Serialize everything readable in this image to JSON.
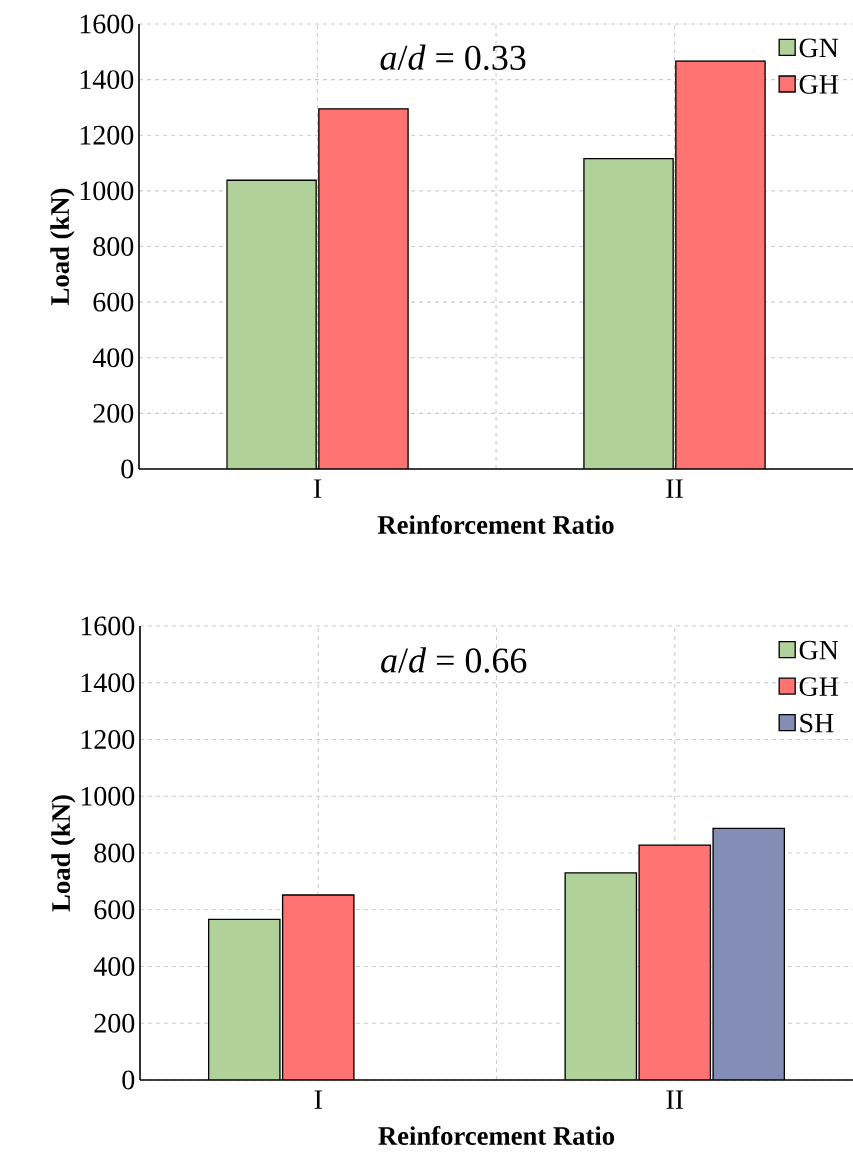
{
  "chart_data": [
    {
      "type": "bar",
      "categories": [
        "I",
        "II"
      ],
      "xlabel": "Reinforcement Ratio",
      "ylabel": "Load (kN)",
      "annotations": [
        "*a*/*d* = 0.33"
      ],
      "series": [
        {
          "name": "GN",
          "color": "#b0d29a",
          "values": [
            1038,
            1116
          ]
        },
        {
          "name": "GH",
          "color": "#ff7373",
          "values": [
            1295,
            1467
          ]
        }
      ],
      "ylim": [
        0,
        1600
      ],
      "yticks": [
        0,
        200,
        400,
        600,
        800,
        1000,
        1200,
        1400,
        1600
      ],
      "grid": true,
      "legend": "top right"
    },
    {
      "type": "bar",
      "categories": [
        "I",
        "II"
      ],
      "xlabel": "Reinforcement Ratio",
      "ylabel": "Load (kN)",
      "annotations": [
        "*a*/*d* = 0.66"
      ],
      "series": [
        {
          "name": "GN",
          "color": "#b0d29a",
          "values": [
            566,
            730
          ]
        },
        {
          "name": "GH",
          "color": "#ff7373",
          "values": [
            652,
            828
          ]
        },
        {
          "name": "SH",
          "color": "#848db6",
          "values": [
            null,
            887
          ]
        }
      ],
      "ylim": [
        0,
        1600
      ],
      "yticks": [
        0,
        200,
        400,
        600,
        800,
        1000,
        1200,
        1400,
        1600
      ],
      "grid": true,
      "legend": "top right"
    }
  ]
}
